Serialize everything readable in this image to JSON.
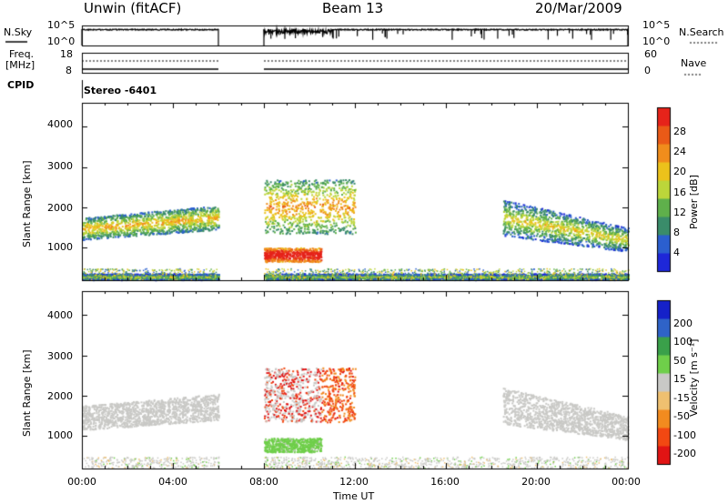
{
  "header": {
    "station": "Unwin (fitACF)",
    "beam": "Beam 13",
    "date": "20/Mar/2009"
  },
  "status_panels": {
    "nsky_label": "N.Sky",
    "nsky_ticks": [
      "10^5",
      "10^0"
    ],
    "nsearch_label": "N.Search",
    "freq_label_line1": "Freq.",
    "freq_label_line2": "[MHz]",
    "freq_ticks": [
      "18",
      "8"
    ],
    "nave_ticks": [
      "60",
      "0"
    ],
    "nave_label": "Nave",
    "cpid_label": "CPID",
    "cpid_value": "Stereo -6401"
  },
  "chart_data": [
    {
      "type": "heatmap",
      "title": "",
      "ylabel": "Slant Range [km]",
      "xlabel": "Time UT",
      "x_ticks": [
        "00:00",
        "04:00",
        "08:00",
        "12:00",
        "16:00",
        "20:00",
        "00:00"
      ],
      "xlim_hours": [
        0,
        24
      ],
      "y_ticks": [
        "1000",
        "2000",
        "3000",
        "4000"
      ],
      "ylim_km": [
        180,
        4600
      ],
      "colorbar": {
        "label": "Power [dB]",
        "ticks": [
          "4",
          "8",
          "12",
          "16",
          "20",
          "24",
          "28"
        ],
        "range": [
          0,
          30
        ]
      },
      "data_gap_hours": [
        6,
        8
      ],
      "bands": [
        {
          "name": "morning-echo",
          "t_start": 0,
          "t_end": 6,
          "r_start": 1200,
          "r_end": 1750,
          "value": 12
        },
        {
          "name": "afternoon-near",
          "t_start": 8,
          "t_end": 10.5,
          "r_start": 650,
          "r_end": 1000,
          "value": 26
        },
        {
          "name": "afternoon-mid",
          "t_start": 8,
          "t_end": 12,
          "r_start": 1350,
          "r_end": 2700,
          "value": 14
        },
        {
          "name": "evening-echo",
          "t_start": 18.5,
          "t_end": 24,
          "r_start": 1100,
          "r_end": 2200,
          "value": 10
        },
        {
          "name": "ground-scatter-low",
          "t_start": 0,
          "t_end": 24,
          "r_start": 200,
          "r_end": 350,
          "value": 8
        }
      ]
    },
    {
      "type": "heatmap",
      "title": "",
      "ylabel": "Slant Range [km]",
      "xlabel": "Time UT",
      "x_ticks": [
        "00:00",
        "04:00",
        "08:00",
        "12:00",
        "16:00",
        "20:00",
        "00:00"
      ],
      "xlim_hours": [
        0,
        24
      ],
      "y_ticks": [
        "1000",
        "2000",
        "3000",
        "4000"
      ],
      "ylim_km": [
        180,
        4600
      ],
      "colorbar": {
        "label": "Velocity [m s⁻¹]",
        "ticks": [
          "200",
          "100",
          "50",
          "15",
          "-15",
          "-50",
          "-100",
          "-200"
        ],
        "range": [
          -250,
          250
        ]
      },
      "data_gap_hours": [
        6,
        8
      ],
      "bands": [
        {
          "name": "morning-echo",
          "t_start": 0,
          "t_end": 6,
          "r_start": 1150,
          "r_end": 1750,
          "value": 0
        },
        {
          "name": "afternoon-near",
          "t_start": 8,
          "t_end": 10.5,
          "r_start": 600,
          "r_end": 950,
          "value": 40
        },
        {
          "name": "afternoon-mid",
          "t_start": 8,
          "t_end": 12,
          "r_start": 1350,
          "r_end": 2700,
          "value": -200
        },
        {
          "name": "evening-echo",
          "t_start": 18.5,
          "t_end": 24,
          "r_start": 1100,
          "r_end": 2200,
          "value": 0
        }
      ]
    }
  ],
  "colors": {
    "power_scale": [
      "#1e27d8",
      "#2b5fcf",
      "#3a8c6a",
      "#5fb04b",
      "#bcd63a",
      "#ecc21b",
      "#f08d1c",
      "#ea5a17",
      "#e6231a"
    ],
    "velocity_scale": [
      "#e11414",
      "#f24812",
      "#f28b1f",
      "#efc070",
      "#c9c9c6",
      "#6fcf4a",
      "#3aa04a",
      "#2f63c8",
      "#1521c9"
    ]
  }
}
